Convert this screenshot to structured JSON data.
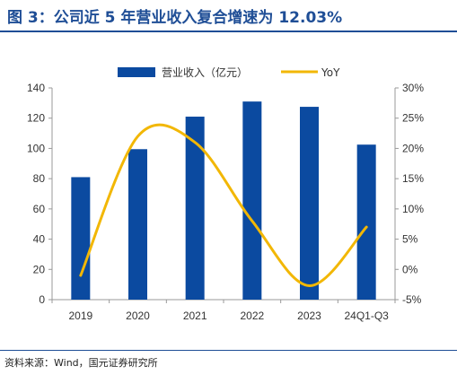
{
  "header": {
    "title": "图 3：公司近 5 年营业收入复合增速为 12.03%"
  },
  "footer": {
    "source": "资料来源：Wind，国元证券研究所"
  },
  "chart_data": {
    "type": "bar+line",
    "categories": [
      "2019",
      "2020",
      "2021",
      "2022",
      "2023",
      "24Q1-Q3"
    ],
    "series": [
      {
        "name": "营业收入（亿元）",
        "type": "bar",
        "axis": "left",
        "color": "#0b4aa0",
        "values": [
          81,
          99.5,
          121,
          131,
          127.5,
          102.5
        ]
      },
      {
        "name": "YoY",
        "type": "line",
        "axis": "right",
        "color": "#f2b705",
        "smooth": true,
        "values": [
          -1.0,
          22.0,
          21.0,
          8.0,
          -2.7,
          7.0
        ]
      }
    ],
    "y_left": {
      "min": 0,
      "max": 140,
      "step": 20,
      "ticks": [
        "0",
        "20",
        "40",
        "60",
        "80",
        "100",
        "120",
        "140"
      ]
    },
    "y_right": {
      "min": -5,
      "max": 30,
      "step": 5,
      "ticks": [
        "-5%",
        "0%",
        "5%",
        "10%",
        "15%",
        "20%",
        "25%",
        "30%"
      ]
    },
    "legend": "top-center",
    "grid": false
  }
}
